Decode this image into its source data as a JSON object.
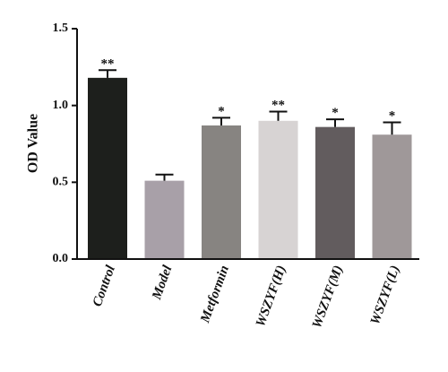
{
  "chart_data": {
    "type": "bar",
    "ylabel": "OD Value",
    "xlabel": "",
    "title": "",
    "ylim": [
      0,
      1.5
    ],
    "yticks": [
      "0.0",
      "0.5",
      "1.0",
      "1.5"
    ],
    "categories": [
      "Control",
      "Model",
      "Metformin",
      "WSZYF(H)",
      "WSZYF(M)",
      "WSZYF(L)"
    ],
    "values": [
      1.18,
      0.51,
      0.87,
      0.9,
      0.86,
      0.81
    ],
    "errors": [
      0.05,
      0.04,
      0.05,
      0.06,
      0.05,
      0.08
    ],
    "significance": [
      "**",
      "",
      "*",
      "**",
      "*",
      "*"
    ],
    "colors": [
      "#1d1f1c",
      "#a8a0a8",
      "#878481",
      "#d7d3d3",
      "#625c5e",
      "#9f9899"
    ]
  }
}
